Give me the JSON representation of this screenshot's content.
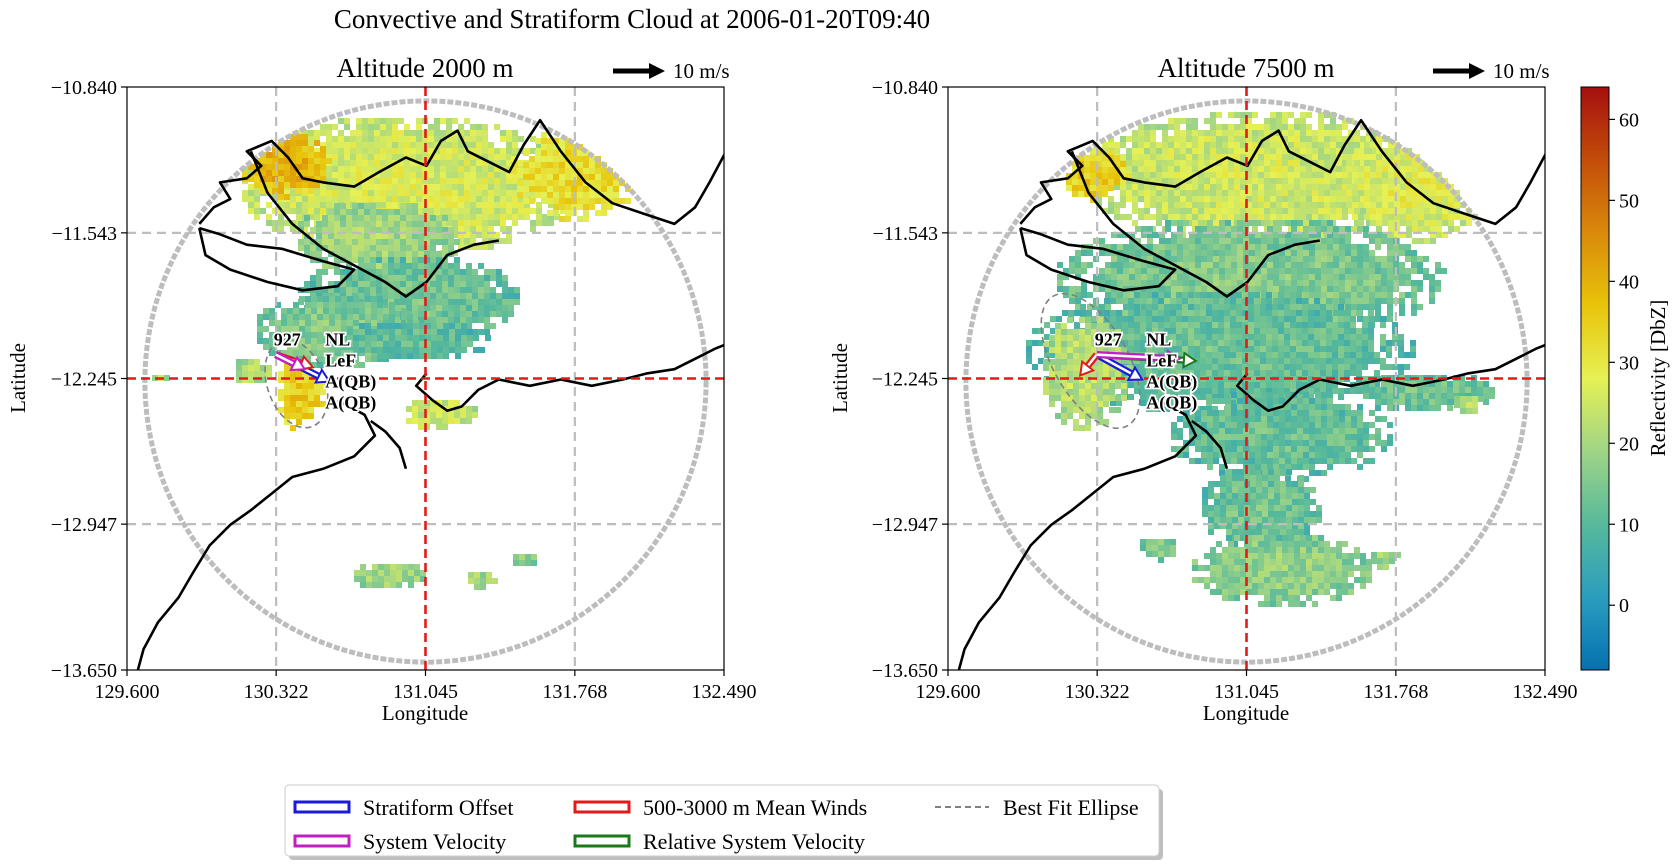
{
  "figure_title": "Convective and Stratiform Cloud at 2006-01-20T09:40",
  "chart_data": [
    {
      "type": "heatmap",
      "title": "Altitude 2000 m",
      "xlabel": "Longitude",
      "ylabel": "Latitude",
      "xlim": [
        129.6,
        132.49
      ],
      "ylim": [
        -13.65,
        -10.84
      ],
      "xticks": [
        "129.600",
        "130.322",
        "131.045",
        "131.768",
        "132.490"
      ],
      "yticks": [
        "-13.650",
        "-12.947",
        "-12.245",
        "-11.543",
        "-10.840"
      ],
      "gridlines_lon": [
        130.322,
        131.768
      ],
      "gridlines_lat": [
        -11.543,
        -12.947
      ],
      "center": {
        "lon": 131.045,
        "lat": -12.245
      },
      "key_label": "10 m/s",
      "system_labels": [
        "927",
        "NL",
        "LeF",
        "A(QB)",
        "A(QB)"
      ],
      "system_position": {
        "lon": 130.32,
        "lat": -12.13
      },
      "vectors": [
        {
          "name": "Stratiform Offset",
          "color": "#1a1adb",
          "dlon": 0.26,
          "dlat": -0.13
        },
        {
          "name": "500-3000 m Mean Winds",
          "color": "#e31a1a",
          "dlon": 0.18,
          "dlat": -0.06
        },
        {
          "name": "System Velocity",
          "color": "#c21fc2",
          "dlon": 0.14,
          "dlat": -0.07
        }
      ],
      "ellipse": {
        "lon": 130.42,
        "lat": -12.27,
        "rx_lon": 0.14,
        "ry_lat": 0.22,
        "angle": -20
      },
      "echoes": [
        {
          "lon": 130.95,
          "lat": -11.3,
          "rlon": 0.82,
          "rlat": 0.34,
          "dbz": 27
        },
        {
          "lon": 130.35,
          "lat": -11.2,
          "rlon": 0.22,
          "rlat": 0.16,
          "dbz": 40
        },
        {
          "lon": 131.75,
          "lat": -11.25,
          "rlon": 0.32,
          "rlat": 0.22,
          "dbz": 33
        },
        {
          "lon": 130.8,
          "lat": -11.55,
          "rlon": 0.4,
          "rlat": 0.18,
          "dbz": 20
        },
        {
          "lon": 130.95,
          "lat": -11.85,
          "rlon": 0.55,
          "rlat": 0.22,
          "dbz": 14
        },
        {
          "lon": 130.6,
          "lat": -12.0,
          "rlon": 0.4,
          "rlat": 0.18,
          "dbz": 16
        },
        {
          "lon": 130.42,
          "lat": -12.3,
          "rlon": 0.12,
          "rlat": 0.18,
          "dbz": 36
        },
        {
          "lon": 130.2,
          "lat": -12.2,
          "rlon": 0.1,
          "rlat": 0.08,
          "dbz": 22
        },
        {
          "lon": 130.95,
          "lat": -12.05,
          "rlon": 0.4,
          "rlat": 0.1,
          "dbz": 12
        },
        {
          "lon": 131.1,
          "lat": -12.4,
          "rlon": 0.18,
          "rlat": 0.08,
          "dbz": 26
        },
        {
          "lon": 129.75,
          "lat": -12.23,
          "rlon": 0.06,
          "rlat": 0.03,
          "dbz": 22
        },
        {
          "lon": 130.85,
          "lat": -13.18,
          "rlon": 0.18,
          "rlat": 0.07,
          "dbz": 20
        },
        {
          "lon": 131.3,
          "lat": -13.2,
          "rlon": 0.08,
          "rlat": 0.05,
          "dbz": 20
        },
        {
          "lon": 131.52,
          "lat": -13.1,
          "rlon": 0.08,
          "rlat": 0.04,
          "dbz": 18
        }
      ]
    },
    {
      "type": "heatmap",
      "title": "Altitude 7500 m",
      "xlabel": "Longitude",
      "ylabel": "Latitude",
      "xlim": [
        129.6,
        132.49
      ],
      "ylim": [
        -13.65,
        -10.84
      ],
      "xticks": [
        "129.600",
        "130.322",
        "131.045",
        "131.768",
        "132.490"
      ],
      "yticks": [
        "-13.650",
        "-12.947",
        "-12.245",
        "-11.543",
        "-10.840"
      ],
      "gridlines_lon": [
        130.322,
        131.768
      ],
      "gridlines_lat": [
        -11.543,
        -12.947
      ],
      "center": {
        "lon": 131.045,
        "lat": -12.245
      },
      "key_label": "10 m/s",
      "system_labels": [
        "927",
        "NL",
        "LeF",
        "A(QB)",
        "A(QB)"
      ],
      "system_position": {
        "lon": 130.32,
        "lat": -12.13
      },
      "vectors": [
        {
          "name": "Stratiform Offset",
          "color": "#1a1adb",
          "dlon": 0.22,
          "dlat": -0.12
        },
        {
          "name": "500-3000 m Mean Winds",
          "color": "#e31a1a",
          "dlon": -0.08,
          "dlat": -0.1
        },
        {
          "name": "Relative System Velocity",
          "color": "#1a7a1a",
          "dlon": 0.48,
          "dlat": -0.03
        },
        {
          "name": "System Velocity",
          "color": "#c21fc2",
          "dlon": 0.4,
          "dlat": -0.02
        }
      ],
      "ellipse": {
        "lon": 130.29,
        "lat": -12.16,
        "rx_lon": 0.18,
        "ry_lat": 0.36,
        "angle": -30
      },
      "echoes": [
        {
          "lon": 131.1,
          "lat": -11.25,
          "rlon": 0.9,
          "rlat": 0.32,
          "dbz": 26
        },
        {
          "lon": 130.3,
          "lat": -11.25,
          "rlon": 0.16,
          "rlat": 0.14,
          "dbz": 36
        },
        {
          "lon": 131.85,
          "lat": -11.3,
          "rlon": 0.35,
          "rlat": 0.28,
          "dbz": 28
        },
        {
          "lon": 131.05,
          "lat": -11.75,
          "rlon": 0.95,
          "rlat": 0.3,
          "dbz": 16
        },
        {
          "lon": 130.9,
          "lat": -12.1,
          "rlon": 0.95,
          "rlat": 0.3,
          "dbz": 13
        },
        {
          "lon": 130.25,
          "lat": -12.2,
          "rlon": 0.22,
          "rlat": 0.28,
          "dbz": 23
        },
        {
          "lon": 131.2,
          "lat": -12.5,
          "rlon": 0.55,
          "rlat": 0.22,
          "dbz": 13
        },
        {
          "lon": 131.1,
          "lat": -12.85,
          "rlon": 0.3,
          "rlat": 0.2,
          "dbz": 14
        },
        {
          "lon": 131.2,
          "lat": -13.15,
          "rlon": 0.45,
          "rlat": 0.18,
          "dbz": 18
        },
        {
          "lon": 131.9,
          "lat": -12.3,
          "rlon": 0.35,
          "rlat": 0.1,
          "dbz": 14
        },
        {
          "lon": 132.1,
          "lat": -12.35,
          "rlon": 0.08,
          "rlat": 0.05,
          "dbz": 21
        },
        {
          "lon": 130.6,
          "lat": -13.05,
          "rlon": 0.1,
          "rlat": 0.06,
          "dbz": 16
        },
        {
          "lon": 132.2,
          "lat": -13.12,
          "rlon": 0.1,
          "rlat": 0.06,
          "dbz": 20
        },
        {
          "lon": 131.7,
          "lat": -13.1,
          "rlon": 0.08,
          "rlat": 0.05,
          "dbz": 20
        }
      ]
    }
  ],
  "colorbar": {
    "label": "Reflectivity [DbZ]",
    "range": [
      -8,
      64
    ],
    "ticks": [
      0,
      10,
      20,
      30,
      40,
      50,
      60
    ],
    "colors": [
      "#0571b0",
      "#2b9dbf",
      "#57b99b",
      "#9fd486",
      "#e6f154",
      "#e8c40a",
      "#d98a0a",
      "#c34d0a",
      "#a50f0f"
    ]
  },
  "legend": {
    "placement": "bottom-center",
    "items": [
      {
        "label": "Stratiform Offset",
        "color": "#1a1adb",
        "kind": "box"
      },
      {
        "label": "500-3000 m Mean Winds",
        "color": "#e31a1a",
        "kind": "box"
      },
      {
        "label": "Best Fit Ellipse",
        "color": "#7f7f7f",
        "kind": "dash"
      },
      {
        "label": "System Velocity",
        "color": "#c21fc2",
        "kind": "box"
      },
      {
        "label": "Relative System Velocity",
        "color": "#1a7a1a",
        "kind": "box"
      }
    ]
  },
  "colors": {
    "crosshair": "#e31a1a",
    "grid": "#bdbdbd",
    "coast": "#000000",
    "range_ring": "#bdbdbd"
  }
}
